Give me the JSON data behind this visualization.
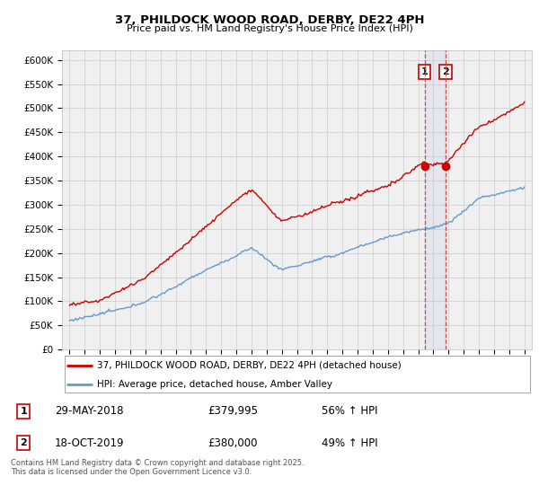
{
  "title": "37, PHILDOCK WOOD ROAD, DERBY, DE22 4PH",
  "subtitle": "Price paid vs. HM Land Registry's House Price Index (HPI)",
  "line1_label": "37, PHILDOCK WOOD ROAD, DERBY, DE22 4PH (detached house)",
  "line2_label": "HPI: Average price, detached house, Amber Valley",
  "line1_color": "#cc0000",
  "line2_color": "#6699cc",
  "vline1_x": 2018.42,
  "vline2_x": 2019.8,
  "dot1_y": 379995,
  "dot2_y": 380000,
  "annotation1_date": "29-MAY-2018",
  "annotation1_price": "£379,995",
  "annotation1_hpi": "56% ↑ HPI",
  "annotation2_date": "18-OCT-2019",
  "annotation2_price": "£380,000",
  "annotation2_hpi": "49% ↑ HPI",
  "ylim_min": 0,
  "ylim_max": 620000,
  "xlim_min": 1994.5,
  "xlim_max": 2025.5,
  "grid_color": "#cccccc",
  "bg_color": "#f0f0f0",
  "footer": "Contains HM Land Registry data © Crown copyright and database right 2025.\nThis data is licensed under the Open Government Licence v3.0.",
  "yticks": [
    0,
    50000,
    100000,
    150000,
    200000,
    250000,
    300000,
    350000,
    400000,
    450000,
    500000,
    550000,
    600000
  ],
  "ytick_labels": [
    "£0",
    "£50K",
    "£100K",
    "£150K",
    "£200K",
    "£250K",
    "£300K",
    "£350K",
    "£400K",
    "£450K",
    "£500K",
    "£550K",
    "£600K"
  ],
  "xticks": [
    1995,
    1996,
    1997,
    1998,
    1999,
    2000,
    2001,
    2002,
    2003,
    2004,
    2005,
    2006,
    2007,
    2008,
    2009,
    2010,
    2011,
    2012,
    2013,
    2014,
    2015,
    2016,
    2017,
    2018,
    2019,
    2020,
    2021,
    2022,
    2023,
    2024,
    2025
  ]
}
